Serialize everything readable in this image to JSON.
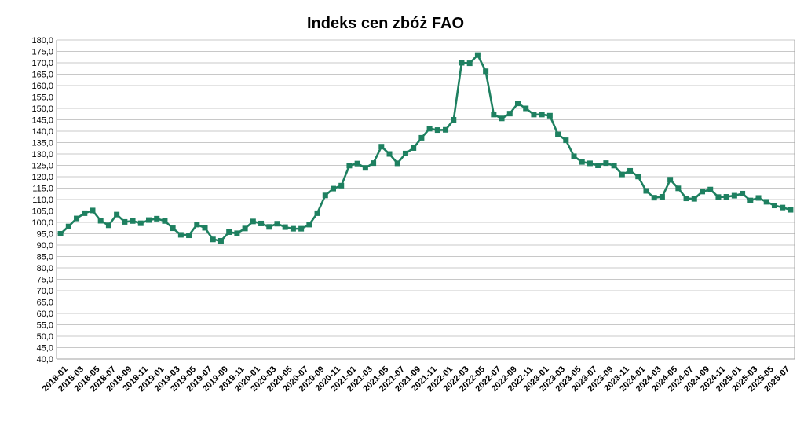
{
  "chart_data": {
    "type": "line",
    "title": "Indeks cen zbóż FAO",
    "xlabel": "",
    "ylabel": "",
    "ylim": [
      40,
      180
    ],
    "y_step": 5,
    "y_decimal_separator": ",",
    "grid": "horizontal",
    "legend": "none",
    "line_color": "#1e8060",
    "marker": "square",
    "x": [
      "2018-01",
      "2018-02",
      "2018-03",
      "2018-04",
      "2018-05",
      "2018-06",
      "2018-07",
      "2018-08",
      "2018-09",
      "2018-10",
      "2018-11",
      "2018-12",
      "2019-01",
      "2019-02",
      "2019-03",
      "2019-04",
      "2019-05",
      "2019-06",
      "2019-07",
      "2019-08",
      "2019-09",
      "2019-10",
      "2019-11",
      "2019-12",
      "2020-01",
      "2020-02",
      "2020-03",
      "2020-04",
      "2020-05",
      "2020-06",
      "2020-07",
      "2020-08",
      "2020-09",
      "2020-10",
      "2020-11",
      "2020-12",
      "2021-01",
      "2021-02",
      "2021-03",
      "2021-04",
      "2021-05",
      "2021-06",
      "2021-07",
      "2021-08",
      "2021-09",
      "2021-10",
      "2021-11",
      "2021-12",
      "2022-01",
      "2022-02",
      "2022-03",
      "2022-04",
      "2022-05",
      "2022-06",
      "2022-07",
      "2022-08",
      "2022-09",
      "2022-10",
      "2022-11",
      "2022-12",
      "2023-01",
      "2023-02",
      "2023-03",
      "2023-04",
      "2023-05",
      "2023-06",
      "2023-07",
      "2023-08",
      "2023-09",
      "2023-10",
      "2023-11",
      "2023-12",
      "2024-01",
      "2024-02",
      "2024-03",
      "2024-04",
      "2024-05",
      "2024-06",
      "2024-07",
      "2024-08",
      "2024-09",
      "2024-10",
      "2024-11",
      "2024-12",
      "2025-01",
      "2025-02",
      "2025-03",
      "2025-04",
      "2025-05",
      "2025-06",
      "2025-07",
      "2025-08"
    ],
    "x_tick_labels": [
      "2018-01",
      "2018-03",
      "2018-05",
      "2018-07",
      "2018-09",
      "2018-11",
      "2019-01",
      "2019-03",
      "2019-05",
      "2019-07",
      "2019-09",
      "2019-11",
      "2020-01",
      "2020-03",
      "2020-05",
      "2020-07",
      "2020-09",
      "2020-11",
      "2021-01",
      "2021-03",
      "2021-05",
      "2021-07",
      "2021-09",
      "2021-11",
      "2022-01",
      "2022-03",
      "2022-05",
      "2022-07",
      "2022-09",
      "2022-11",
      "2023-01",
      "2023-03",
      "2023-05",
      "2023-07",
      "2023-09",
      "2023-11",
      "2024-01",
      "2024-03",
      "2024-05",
      "2024-07",
      "2024-09",
      "2024-11",
      "2025-01",
      "2025-03",
      "2025-05",
      "2025-07"
    ],
    "series": [
      {
        "values": [
          95.0,
          98.2,
          101.7,
          104.0,
          105.2,
          100.7,
          98.7,
          103.4,
          100.2,
          100.6,
          99.6,
          101.0,
          101.6,
          100.6,
          97.4,
          94.5,
          94.3,
          99.0,
          97.6,
          92.5,
          91.9,
          95.7,
          95.2,
          97.3,
          100.4,
          99.5,
          98.0,
          99.4,
          97.9,
          97.2,
          97.2,
          99.0,
          104.0,
          111.8,
          114.8,
          116.1,
          124.9,
          125.8,
          123.9,
          126.0,
          133.2,
          130.0,
          125.9,
          130.2,
          132.6,
          137.1,
          141.1,
          140.5,
          140.6,
          145.0,
          170.0,
          169.8,
          173.4,
          166.3,
          147.3,
          145.6,
          147.7,
          152.2,
          150.0,
          147.3,
          147.3,
          146.8,
          138.6,
          136.0,
          129.0,
          126.5,
          125.9,
          125.0,
          126.0,
          124.9,
          121.0,
          122.6,
          120.1,
          113.8,
          110.8,
          111.2,
          118.7,
          114.9,
          110.5,
          110.3,
          113.5,
          114.4,
          111.1,
          111.2,
          111.7,
          112.6,
          109.6,
          110.7,
          109.0,
          107.4,
          106.5,
          105.5
        ]
      }
    ]
  }
}
